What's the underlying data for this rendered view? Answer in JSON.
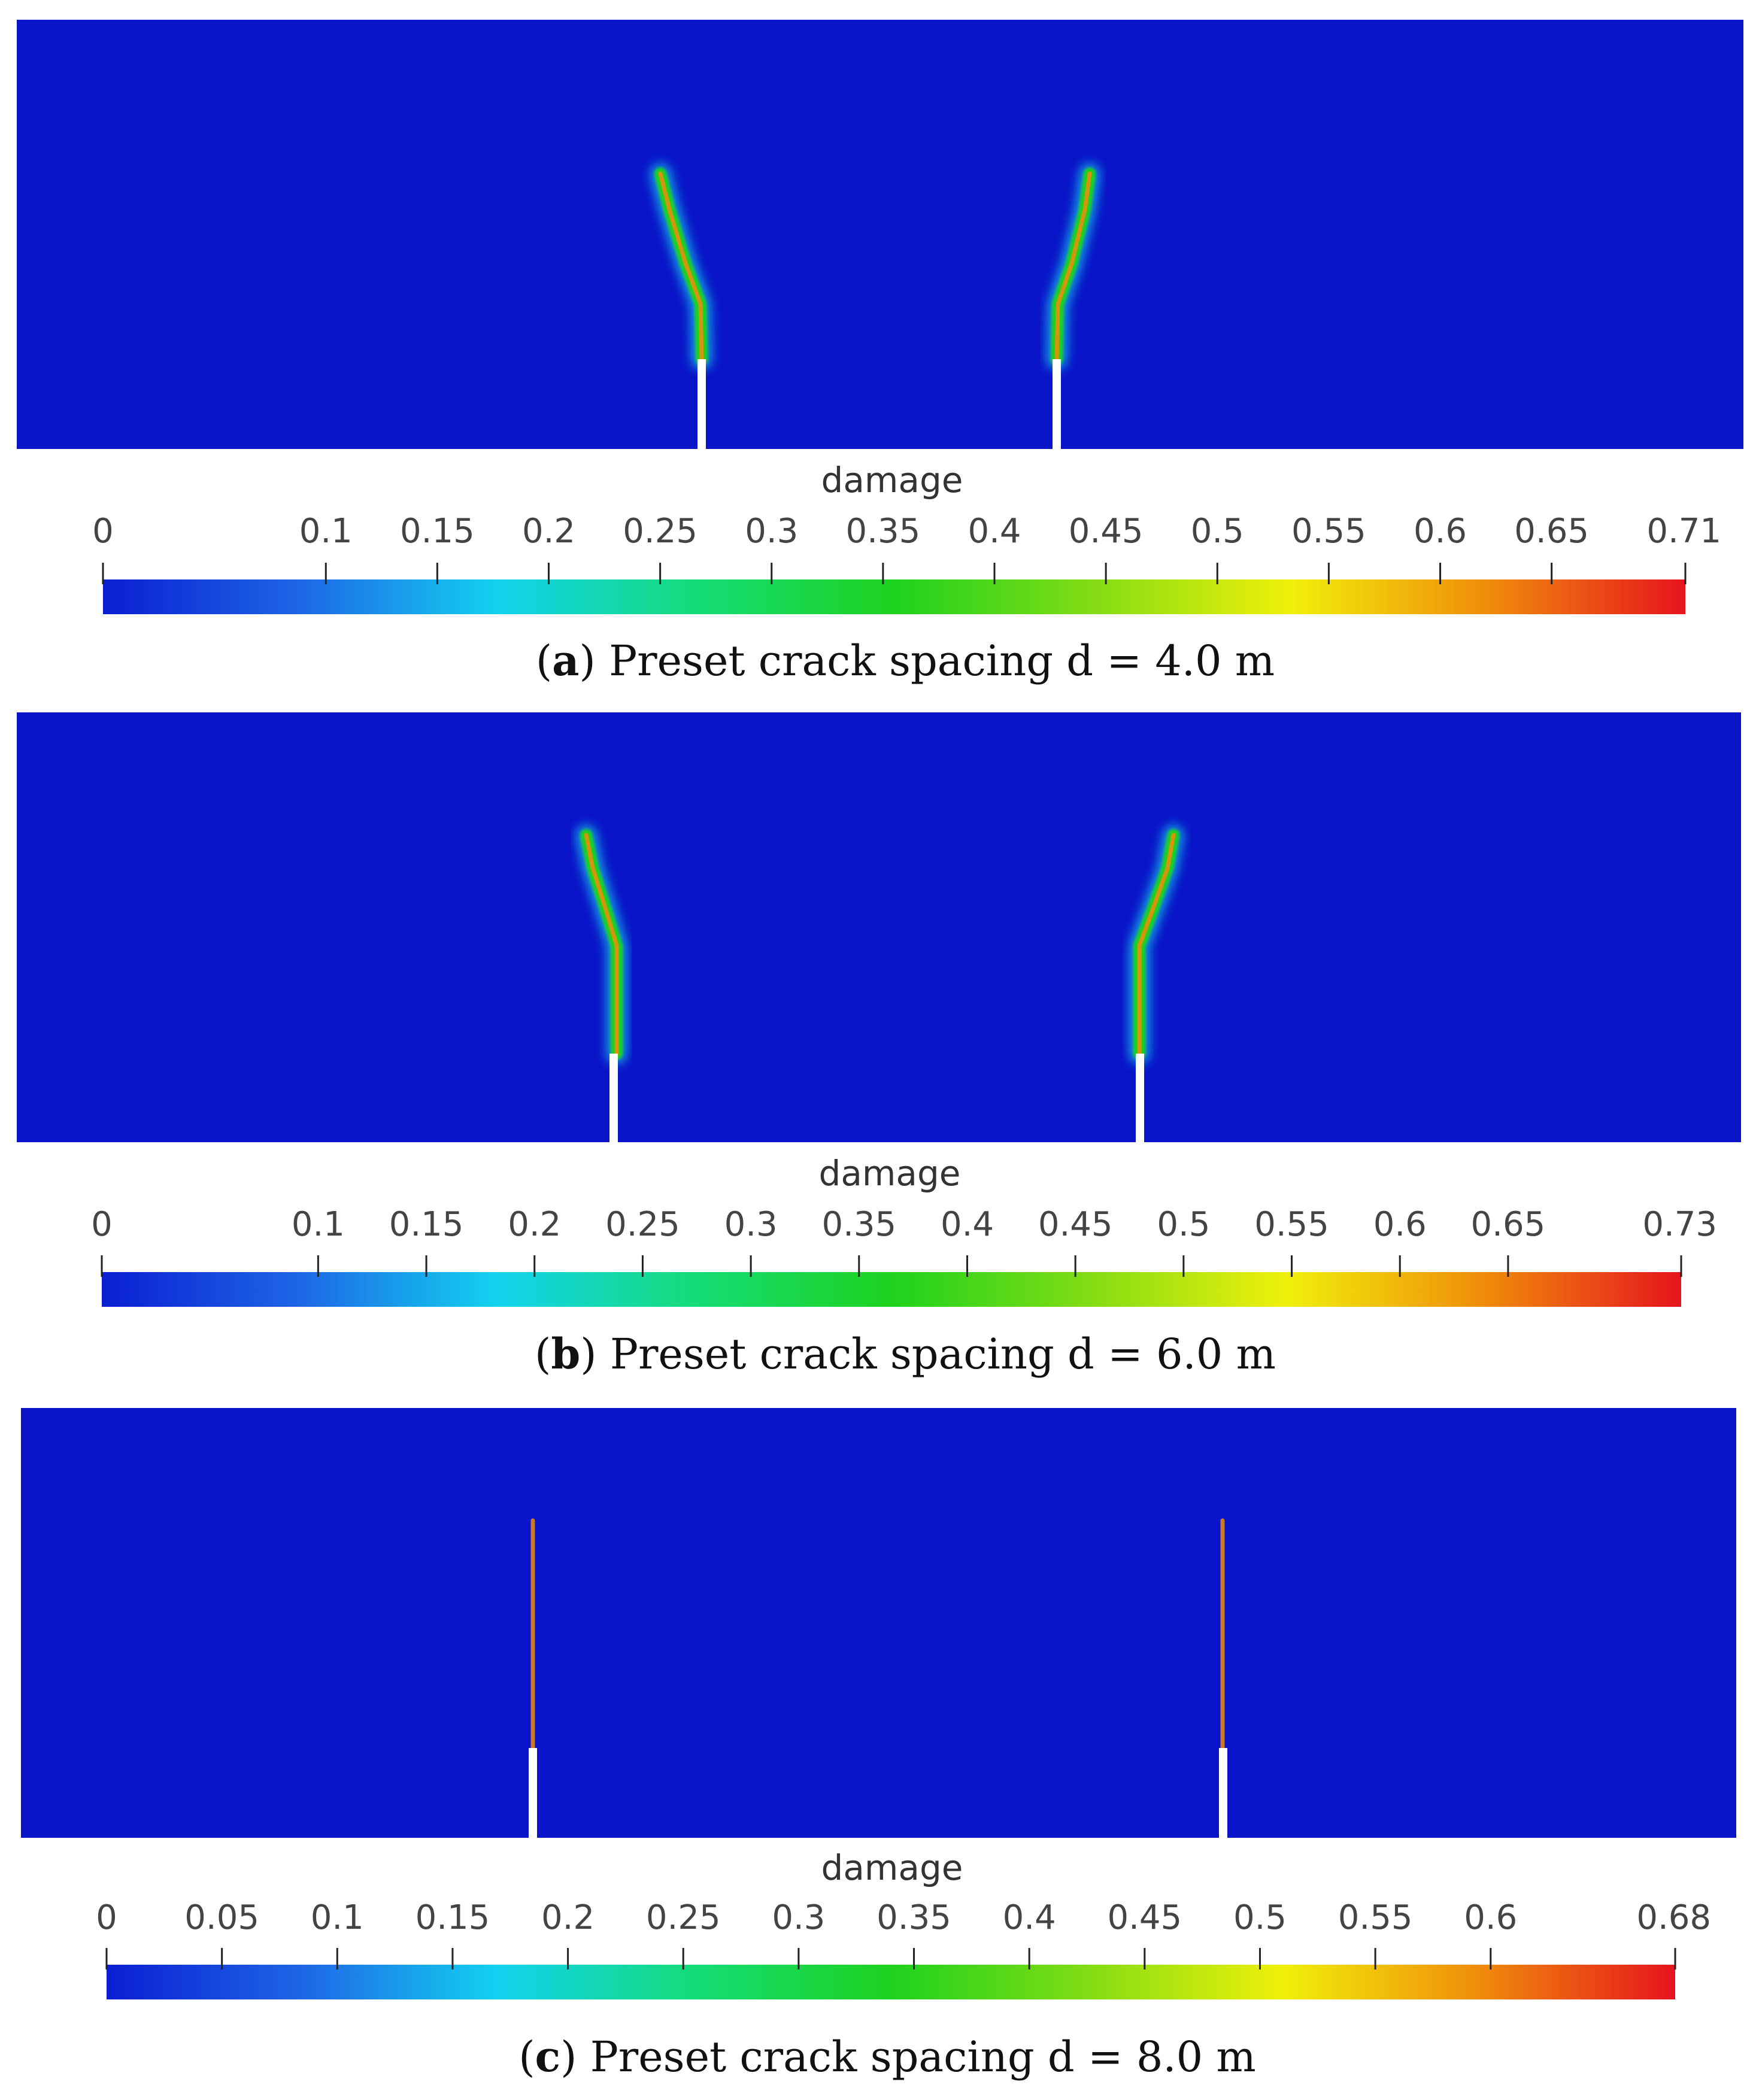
{
  "colormap": [
    "#0a1ed2",
    "#1e66e6",
    "#12d2f0",
    "#14dc78",
    "#1ed21e",
    "#82dc14",
    "#f0f00a",
    "#f08c0a",
    "#e6141e"
  ],
  "domain_color": "#0a14c8",
  "crack_white": "#ffffff",
  "panels": [
    {
      "id": "a",
      "caption_letter": "a",
      "caption_text": "Preset crack spacing d = 4.0 m",
      "colorbar_title": "damage",
      "ticks": [
        "0",
        "0.1",
        "0.15",
        "0.2",
        "0.25",
        "0.3",
        "0.35",
        "0.4",
        "0.45",
        "0.5",
        "0.55",
        "0.6",
        "0.65",
        "0.71"
      ],
      "tick_values": [
        0,
        0.1,
        0.15,
        0.2,
        0.25,
        0.3,
        0.35,
        0.4,
        0.45,
        0.5,
        0.55,
        0.6,
        0.65,
        0.71
      ],
      "range": [
        0,
        0.71
      ]
    },
    {
      "id": "b",
      "caption_letter": "b",
      "caption_text": "Preset crack spacing d = 6.0 m",
      "colorbar_title": "damage",
      "ticks": [
        "0",
        "0.1",
        "0.15",
        "0.2",
        "0.25",
        "0.3",
        "0.35",
        "0.4",
        "0.45",
        "0.5",
        "0.55",
        "0.6",
        "0.65",
        "0.73"
      ],
      "tick_values": [
        0,
        0.1,
        0.15,
        0.2,
        0.25,
        0.3,
        0.35,
        0.4,
        0.45,
        0.5,
        0.55,
        0.6,
        0.65,
        0.73
      ],
      "range": [
        0,
        0.73
      ]
    },
    {
      "id": "c",
      "caption_letter": "c",
      "caption_text": "Preset crack spacing d = 8.0 m",
      "colorbar_title": "damage",
      "ticks": [
        "0",
        "0.05",
        "0.1",
        "0.15",
        "0.2",
        "0.25",
        "0.3",
        "0.35",
        "0.4",
        "0.45",
        "0.5",
        "0.55",
        "0.6",
        "0.68"
      ],
      "tick_values": [
        0,
        0.05,
        0.1,
        0.15,
        0.2,
        0.25,
        0.3,
        0.35,
        0.4,
        0.45,
        0.5,
        0.55,
        0.6,
        0.68
      ],
      "range": [
        0,
        0.68
      ]
    }
  ]
}
